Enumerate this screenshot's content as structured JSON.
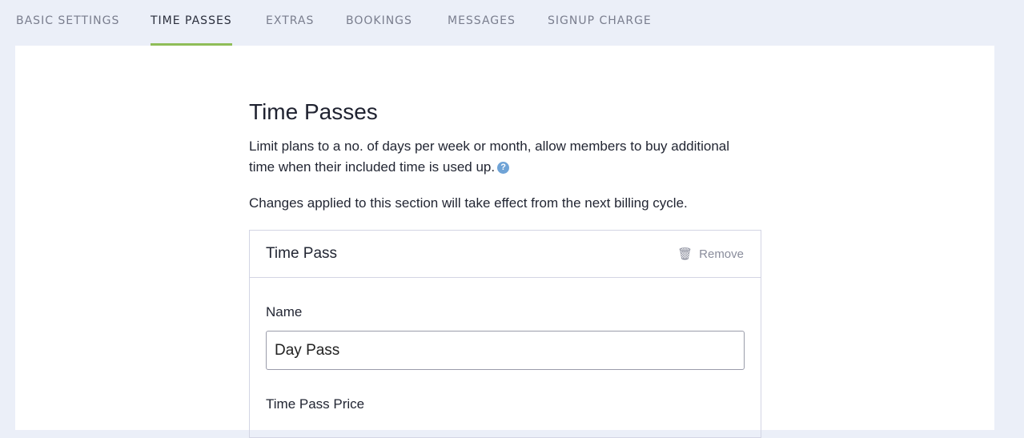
{
  "tabs": [
    "Basic Settings",
    "Time Passes",
    "Extras",
    "Bookings",
    "Messages",
    "Signup Charge"
  ],
  "active_tab": "Time Passes",
  "accent": "#8fbd58",
  "section": {
    "title": "Time Passes",
    "description": "Limit plans to a no. of days per week or month, allow members to buy additional time when their included time is used up.",
    "help_icon": "question-circle-icon",
    "help_glyph": "?",
    "note": "Changes applied to this section will take effect from the next billing cycle."
  },
  "card": {
    "title": "Time Pass",
    "remove_label": "Remove",
    "remove_icon": "trash-icon",
    "name_label": "Name",
    "name_value": "Day Pass",
    "price_label": "Time Pass Price"
  }
}
